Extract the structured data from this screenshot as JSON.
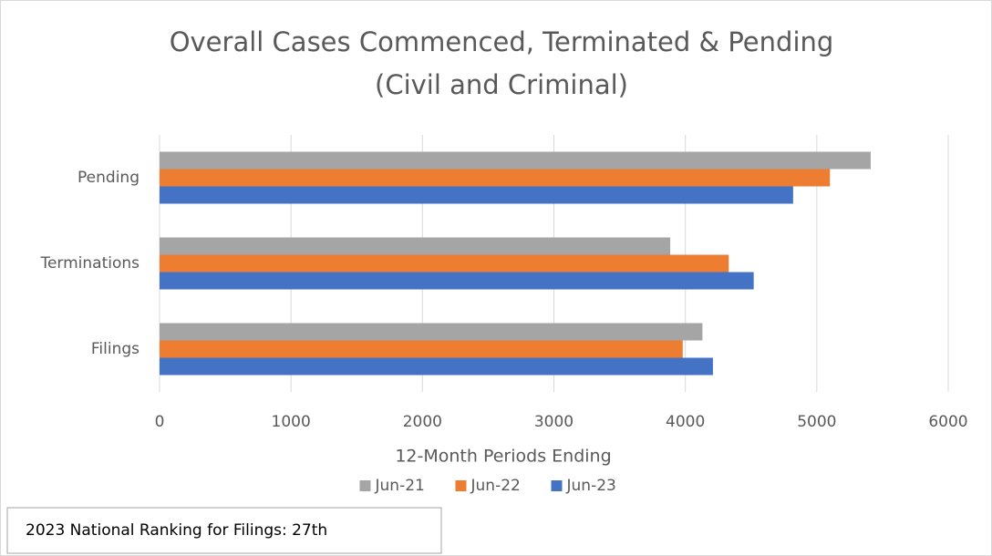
{
  "chart_data": {
    "type": "hbar",
    "title": "Overall Cases Commenced, Terminated & Pending",
    "subtitle": "(Civil and Criminal)",
    "xlabel": "12-Month Periods Ending",
    "categories": [
      "Pending",
      "Terminations",
      "Filings"
    ],
    "series": [
      {
        "name": "Jun-21",
        "color": "#a5a5a5",
        "values": [
          5410,
          3885,
          4130
        ]
      },
      {
        "name": "Jun-22",
        "color": "#ed7d31",
        "values": [
          5100,
          4330,
          3980
        ]
      },
      {
        "name": "Jun-23",
        "color": "#4472c4",
        "values": [
          4820,
          4520,
          4210
        ]
      }
    ],
    "xlim": [
      0,
      6000
    ],
    "xticks": [
      0,
      1000,
      2000,
      3000,
      4000,
      5000,
      6000
    ],
    "grid": true,
    "legend": "bottom",
    "annotation": "2023 National Ranking for Filings: 27th"
  }
}
